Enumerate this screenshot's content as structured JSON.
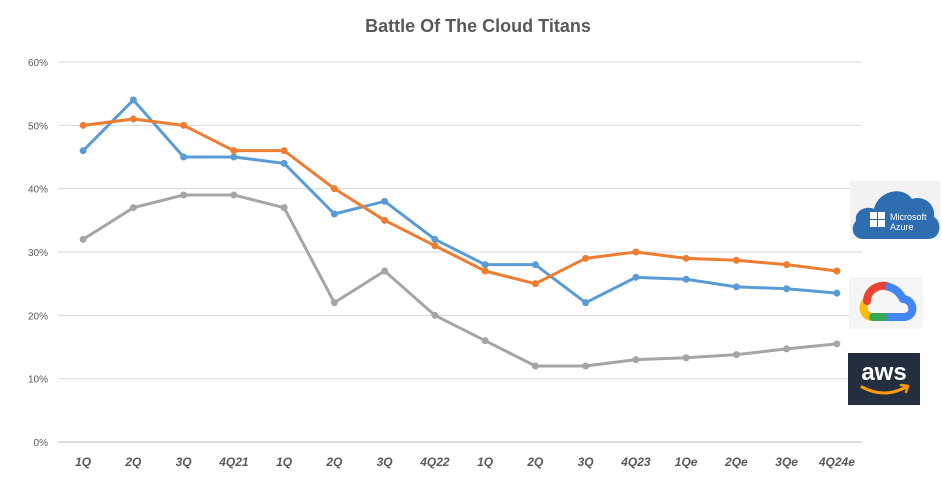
{
  "chart_data": {
    "type": "line",
    "title": "Battle Of The Cloud Titans",
    "xlabel": "",
    "ylabel": "",
    "ylim": [
      0,
      60
    ],
    "yticks": [
      "0%",
      "10%",
      "20%",
      "30%",
      "40%",
      "50%",
      "60%"
    ],
    "grid": "horizontal",
    "categories": [
      "1Q",
      "2Q",
      "3Q",
      "4Q21",
      "1Q",
      "2Q",
      "3Q",
      "4Q22",
      "1Q",
      "2Q",
      "3Q",
      "4Q23",
      "1Qe",
      "2Qe",
      "3Qe",
      "4Q24e"
    ],
    "series": [
      {
        "color": "#5B9BD5",
        "logo": "azure-logo",
        "values": [
          46,
          54,
          45,
          45,
          44,
          36,
          38,
          32,
          28,
          28,
          22,
          26,
          25.7,
          24.5,
          24.2,
          23.5
        ]
      },
      {
        "color": "#ED7D31",
        "logo": "google-cloud-logo",
        "values": [
          50,
          51,
          50,
          46,
          46,
          40,
          35,
          31,
          27,
          25,
          29,
          30,
          29,
          28.7,
          28,
          27
        ]
      },
      {
        "color": "#A5A5A5",
        "logo": "aws-logo",
        "values": [
          32,
          37,
          39,
          39,
          37,
          22,
          27,
          20,
          16,
          12,
          12,
          13,
          13.3,
          13.8,
          14.7,
          15.5
        ]
      }
    ]
  },
  "logos": {
    "azure_line1": "Microsoft",
    "azure_line2": "Azure",
    "aws_text": "aws"
  }
}
